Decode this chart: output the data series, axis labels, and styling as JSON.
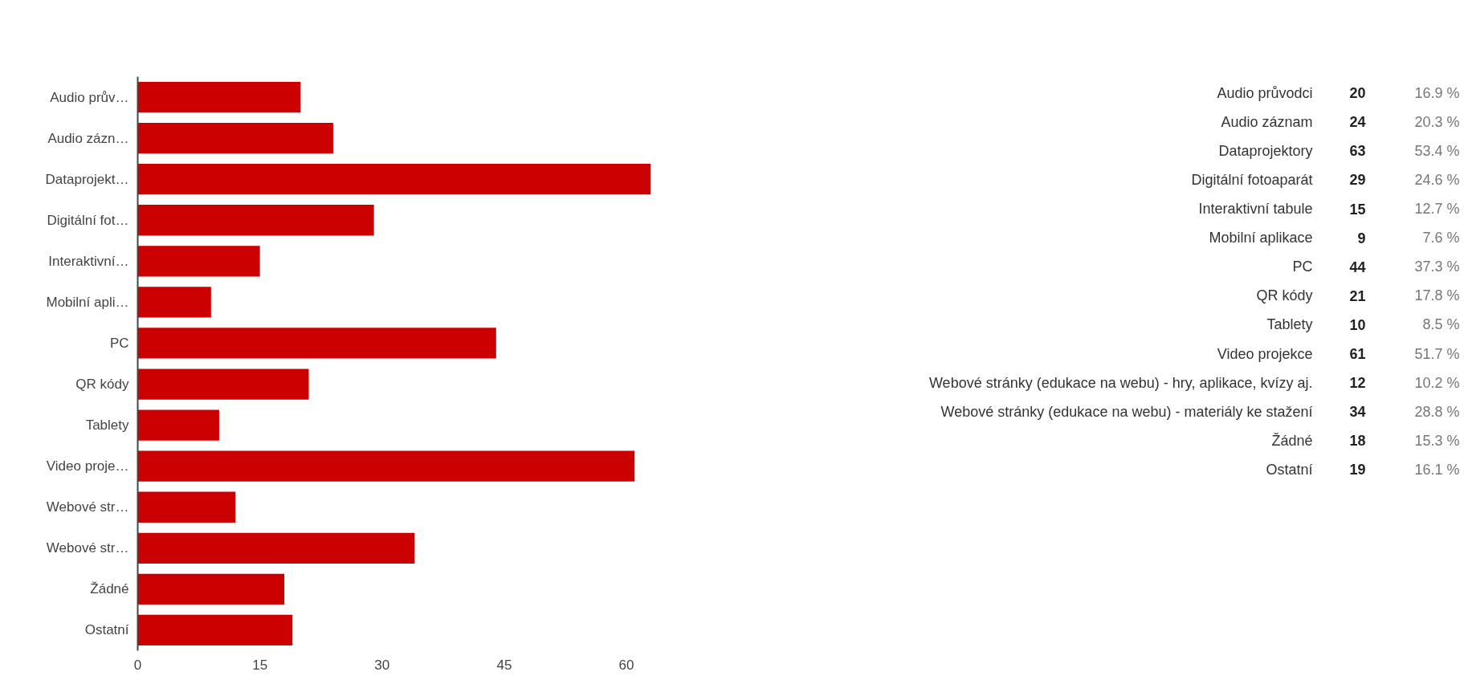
{
  "chart_data": [
    {
      "type": "bar",
      "orientation": "horizontal",
      "categories": [
        "Audio prův…",
        "Audio zázn…",
        "Dataprojekt…",
        "Digitální fot…",
        "Interaktivní…",
        "Mobilní apli…",
        "PC",
        "QR kódy",
        "Tablety",
        "Video proje…",
        "Webové str…",
        "Webové str…",
        "Žádné",
        "Ostatní"
      ],
      "values": [
        20,
        24,
        63,
        29,
        15,
        9,
        44,
        21,
        10,
        61,
        12,
        34,
        18,
        19
      ],
      "color": "#cc0000",
      "xlim": [
        0,
        63
      ],
      "xticks": [
        0,
        15,
        30,
        45,
        60
      ],
      "grid": false
    },
    {
      "type": "other",
      "categories": [
        "Audio průvodci",
        "Audio záznam",
        "Dataprojektory",
        "Digitální fotoaparát",
        "Interaktivní tabule",
        "Mobilní aplikace",
        "PC",
        "QR kódy",
        "Tablety",
        "Video projekce",
        "Webové stránky (edukace na webu) - hry, aplikace, kvízy aj.",
        "Webové stránky (edukace na webu) - materiály ke stažení",
        "Žádné",
        "Ostatní"
      ],
      "series": [
        {
          "color": "#222222",
          "values": [
            20,
            24,
            63,
            29,
            15,
            9,
            44,
            21,
            10,
            61,
            12,
            34,
            18,
            19
          ]
        },
        {
          "color": "#777777",
          "values": [
            16.9,
            20.3,
            53.4,
            24.6,
            12.7,
            7.6,
            37.3,
            17.8,
            8.5,
            51.7,
            10.2,
            28.8,
            15.3,
            16.1
          ],
          "value_labels": [
            "16.9 %",
            "20.3 %",
            "53.4 %",
            "24.6 %",
            "12.7 %",
            "7.6 %",
            "37.3 %",
            "17.8 %",
            "8.5 %",
            "51.7 %",
            "10.2 %",
            "28.8 %",
            "15.3 %",
            "16.1 %"
          ]
        }
      ],
      "data_labels": true
    }
  ]
}
